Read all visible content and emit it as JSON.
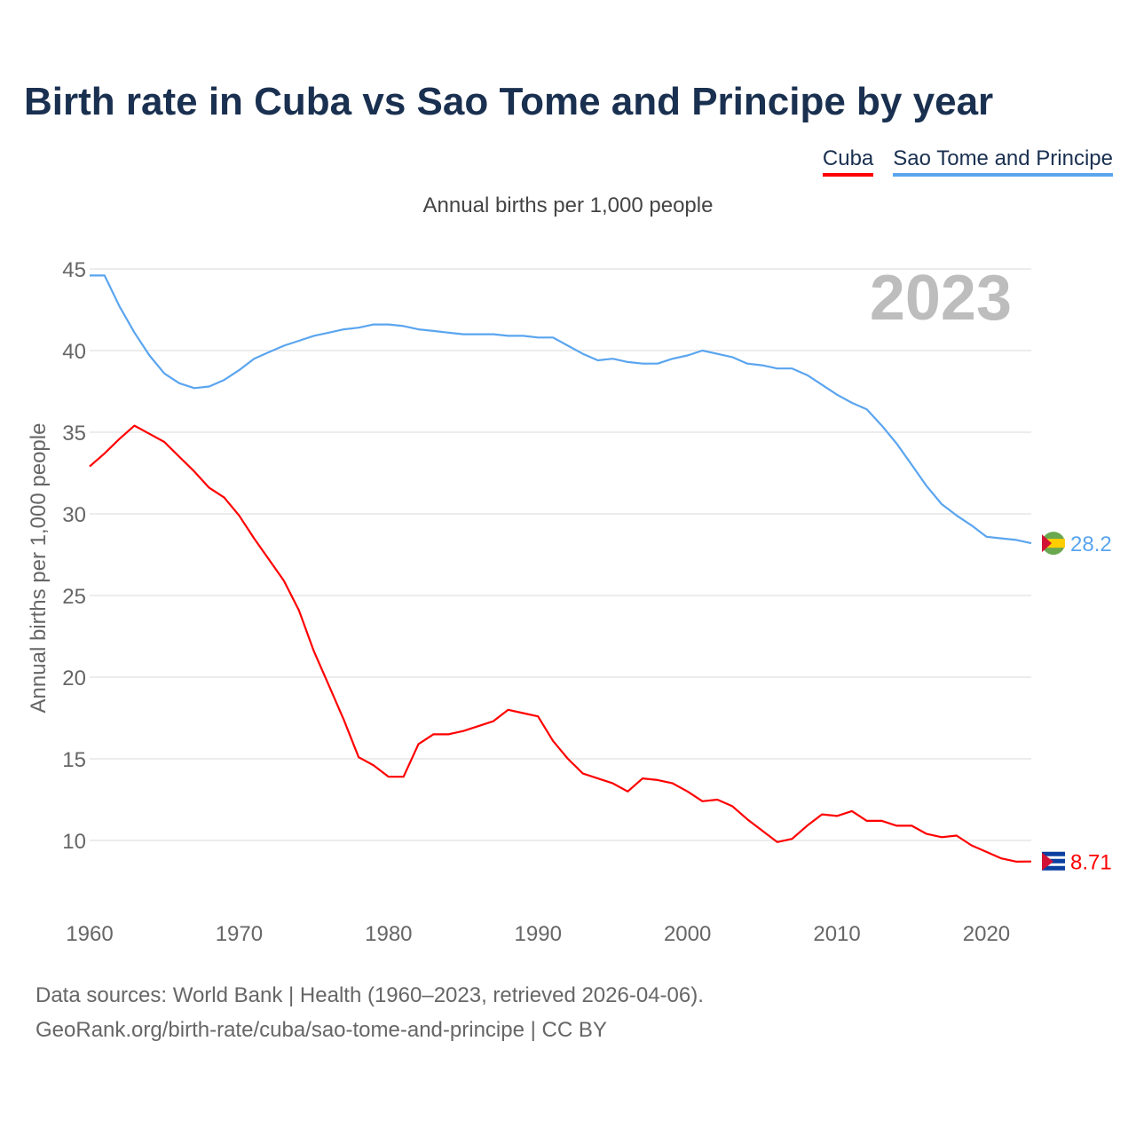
{
  "chart_data": {
    "type": "line",
    "title": "Birth rate in Cuba vs Sao Tome and Principe by year",
    "subtitle": "Annual births per 1,000 people",
    "xlabel": "",
    "ylabel": "Annual births per 1,000 people",
    "xlim": [
      1960,
      2023
    ],
    "ylim": [
      5,
      45
    ],
    "x_ticks": [
      "1960",
      "1970",
      "1980",
      "1990",
      "2000",
      "2010",
      "2020"
    ],
    "y_ticks": [
      "10",
      "15",
      "20",
      "25",
      "30",
      "35",
      "40",
      "45"
    ],
    "grid": true,
    "legend_position": "top-right",
    "year_label": "2023",
    "x": [
      1960,
      1961,
      1962,
      1963,
      1964,
      1965,
      1966,
      1967,
      1968,
      1969,
      1970,
      1971,
      1972,
      1973,
      1974,
      1975,
      1976,
      1977,
      1978,
      1979,
      1980,
      1981,
      1982,
      1983,
      1984,
      1985,
      1986,
      1987,
      1988,
      1989,
      1990,
      1991,
      1992,
      1993,
      1994,
      1995,
      1996,
      1997,
      1998,
      1999,
      2000,
      2001,
      2002,
      2003,
      2004,
      2005,
      2006,
      2007,
      2008,
      2009,
      2010,
      2011,
      2012,
      2013,
      2014,
      2015,
      2016,
      2017,
      2018,
      2019,
      2020,
      2021,
      2022,
      2023
    ],
    "series": [
      {
        "name": "Cuba",
        "color": "#ff0000",
        "end_label": "8.71",
        "values": [
          32.9,
          33.7,
          34.6,
          35.4,
          34.9,
          34.4,
          33.5,
          32.6,
          31.6,
          31.0,
          29.9,
          28.5,
          27.2,
          25.9,
          24.1,
          21.6,
          19.5,
          17.4,
          15.1,
          14.6,
          13.9,
          13.9,
          15.9,
          16.5,
          16.5,
          16.7,
          17.0,
          17.3,
          18.0,
          17.8,
          17.6,
          16.1,
          15.0,
          14.1,
          13.8,
          13.5,
          13.0,
          13.8,
          13.7,
          13.5,
          13.0,
          12.4,
          12.5,
          12.1,
          11.3,
          10.6,
          9.9,
          10.1,
          10.9,
          11.6,
          11.5,
          11.8,
          11.2,
          11.2,
          10.9,
          10.9,
          10.4,
          10.2,
          10.3,
          9.7,
          9.3,
          8.9,
          8.7,
          8.71
        ]
      },
      {
        "name": "Sao Tome and Principe",
        "color": "#5aa5ef",
        "end_label": "28.2",
        "values": [
          44.6,
          44.6,
          42.7,
          41.1,
          39.7,
          38.6,
          38.0,
          37.7,
          37.8,
          38.2,
          38.8,
          39.5,
          39.9,
          40.3,
          40.6,
          40.9,
          41.1,
          41.3,
          41.4,
          41.6,
          41.6,
          41.5,
          41.3,
          41.2,
          41.1,
          41.0,
          41.0,
          41.0,
          40.9,
          40.9,
          40.8,
          40.8,
          40.3,
          39.8,
          39.4,
          39.5,
          39.3,
          39.2,
          39.2,
          39.5,
          39.7,
          40.0,
          39.8,
          39.6,
          39.2,
          39.1,
          38.9,
          38.9,
          38.5,
          37.9,
          37.3,
          36.8,
          36.4,
          35.4,
          34.3,
          33.0,
          31.7,
          30.6,
          29.9,
          29.3,
          28.6,
          28.5,
          28.4,
          28.2
        ]
      }
    ]
  },
  "footer": {
    "line1": "Data sources: World Bank | Health (1960–2023, retrieved 2026-04-06).",
    "line2": "GeoRank.org/birth-rate/cuba/sao-tome-and-principe | CC BY"
  }
}
